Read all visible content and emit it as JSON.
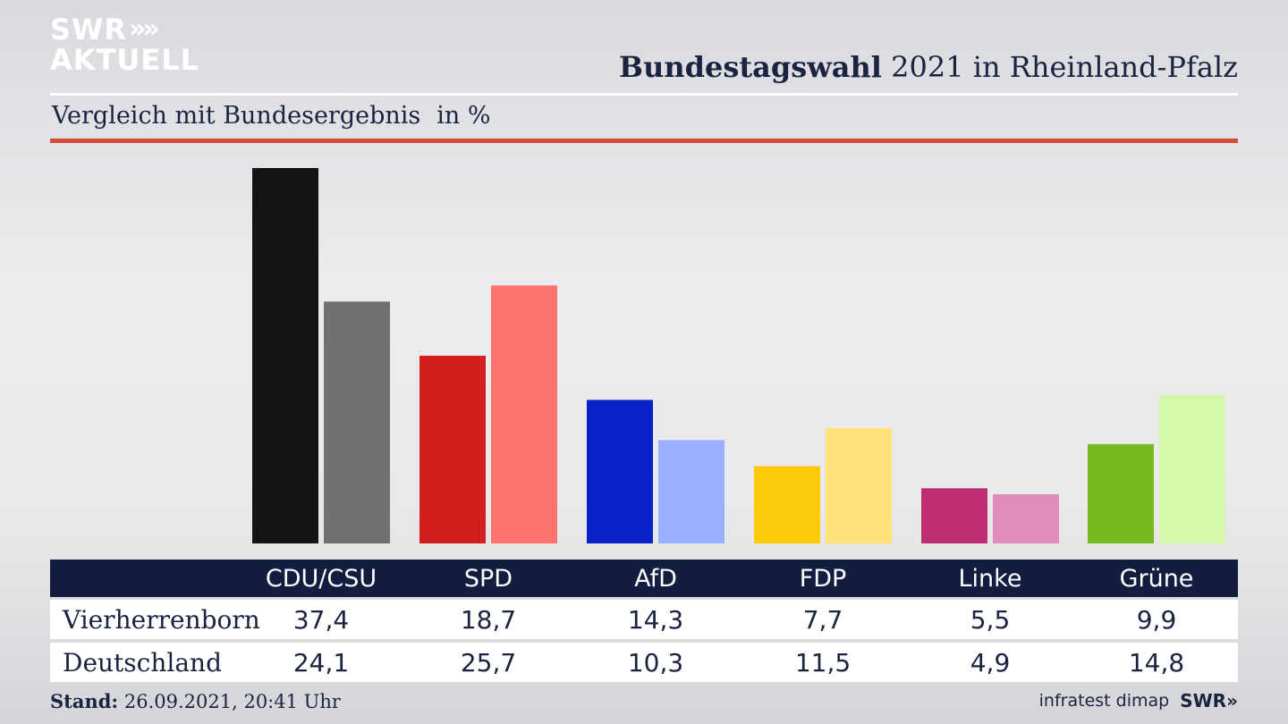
{
  "brand": {
    "line1": "SWR",
    "line2": "AKTUELL",
    "chevrons": "»"
  },
  "header": {
    "title_bold": "Bundestagswahl",
    "title_rest": "2021 in Rheinland-Pfalz"
  },
  "subheader": {
    "subtitle": "Vergleich mit Bundesergebnis",
    "unit": "in %"
  },
  "footer": {
    "stand_label": "Stand:",
    "stand_value": "26.09.2021, 20:41 Uhr",
    "source": "infratest dimap",
    "logo": "SWR»"
  },
  "colors": {
    "rule_red": "#d24b3a",
    "table_header": "#121d3f",
    "text_dark": "#1a2340"
  },
  "chart_data": {
    "type": "bar",
    "categories": [
      "CDU/CSU",
      "SPD",
      "AfD",
      "FDP",
      "Linke",
      "Grüne"
    ],
    "series": [
      {
        "name": "Vierherrenborn",
        "values": [
          37.4,
          18.7,
          14.3,
          7.7,
          5.5,
          9.9
        ],
        "colors": [
          "#141414",
          "#d41e1e",
          "#0a22c8",
          "#fcca0a",
          "#bd2d70",
          "#76bb1e"
        ]
      },
      {
        "name": "Deutschland",
        "values": [
          24.1,
          25.7,
          10.3,
          11.5,
          4.9,
          14.8
        ],
        "colors": [
          "#737170",
          "#ff7470",
          "#9caeff",
          "#ffe27a",
          "#e08cba",
          "#d5f7a8"
        ]
      }
    ],
    "table_values": {
      "Vierherrenborn": [
        "37,4",
        "18,7",
        "14,3",
        "7,7",
        "5,5",
        "9,9"
      ],
      "Deutschland": [
        "24,1",
        "25,7",
        "10,3",
        "11,5",
        "4,9",
        "14,8"
      ]
    },
    "ylim": [
      0,
      37.4
    ],
    "grid": false,
    "legend": "table-below"
  }
}
